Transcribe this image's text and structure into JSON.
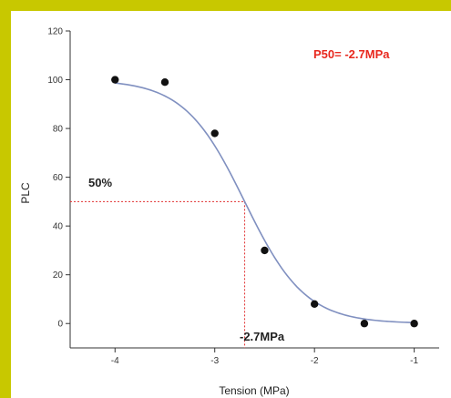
{
  "chart_data": {
    "type": "scatter",
    "title": "",
    "xlabel": "Tension (MPa)",
    "ylabel": "PLC",
    "xlim": [
      -4.45,
      -0.75
    ],
    "ylim": [
      -10,
      120
    ],
    "x_ticks": [
      -4,
      -3,
      -2,
      -1
    ],
    "x_tick_labels": [
      "-4",
      "-3",
      "-2",
      "-1"
    ],
    "y_ticks": [
      0,
      20,
      40,
      60,
      80,
      100,
      120
    ],
    "y_tick_labels": [
      "0",
      "20",
      "40",
      "60",
      "80",
      "100",
      "120"
    ],
    "grid": false,
    "series": [
      {
        "x": [
          -4.0,
          -3.5,
          -3.0,
          -2.5,
          -2.0,
          -1.5,
          -1.0
        ],
        "y": [
          100,
          99,
          78,
          30,
          8,
          0,
          0
        ],
        "color": "#111111"
      }
    ],
    "fit_curve": {
      "model": "sigmoid",
      "p50": -2.7,
      "slope": 3.3,
      "color": "#8090c0"
    },
    "reference_lines": {
      "y_value": 50,
      "x_value": -2.7,
      "color": "#e03030"
    },
    "annotations": {
      "p50_text": "P50= -2.7MPa",
      "p50_color": "#e8281e",
      "half_label": "50%",
      "x_marker_label": "-2.7MPa"
    }
  }
}
